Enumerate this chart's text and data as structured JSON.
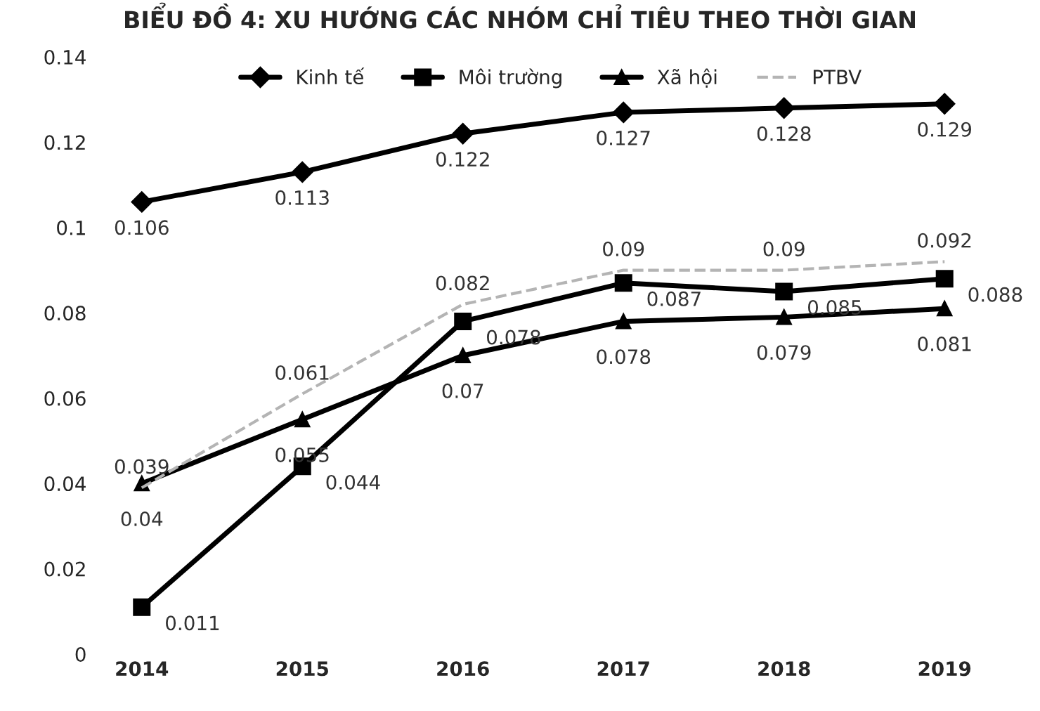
{
  "chart_data": {
    "type": "line",
    "title": "BIỂU ĐỒ 4: XU HƯỚNG CÁC NHÓM CHỈ TIÊU THEO THỜI GIAN",
    "categories": [
      "2014",
      "2015",
      "2016",
      "2017",
      "2018",
      "2019"
    ],
    "series": [
      {
        "name": "Kinh tế",
        "color": "#000000",
        "marker": "diamond",
        "line_style": "solid",
        "values": [
          0.106,
          0.113,
          0.122,
          0.127,
          0.128,
          0.129
        ]
      },
      {
        "name": "Môi trường",
        "color": "#000000",
        "marker": "square",
        "line_style": "solid",
        "values": [
          0.011,
          0.044,
          0.078,
          0.087,
          0.085,
          0.088
        ]
      },
      {
        "name": "Xã hội",
        "color": "#000000",
        "marker": "triangle",
        "line_style": "solid",
        "values": [
          0.04,
          0.055,
          0.07,
          0.078,
          0.079,
          0.081
        ]
      },
      {
        "name": "PTBV",
        "color": "#b4b4b4",
        "marker": "none",
        "line_style": "dashed",
        "values": [
          0.039,
          0.061,
          0.082,
          0.09,
          0.09,
          0.092
        ]
      }
    ],
    "ylim": [
      0,
      0.14
    ],
    "yticks": [
      0,
      0.02,
      0.04,
      0.06,
      0.08,
      0.1,
      0.12,
      0.14
    ],
    "data_labels": true,
    "grid": false,
    "legend": "top"
  }
}
